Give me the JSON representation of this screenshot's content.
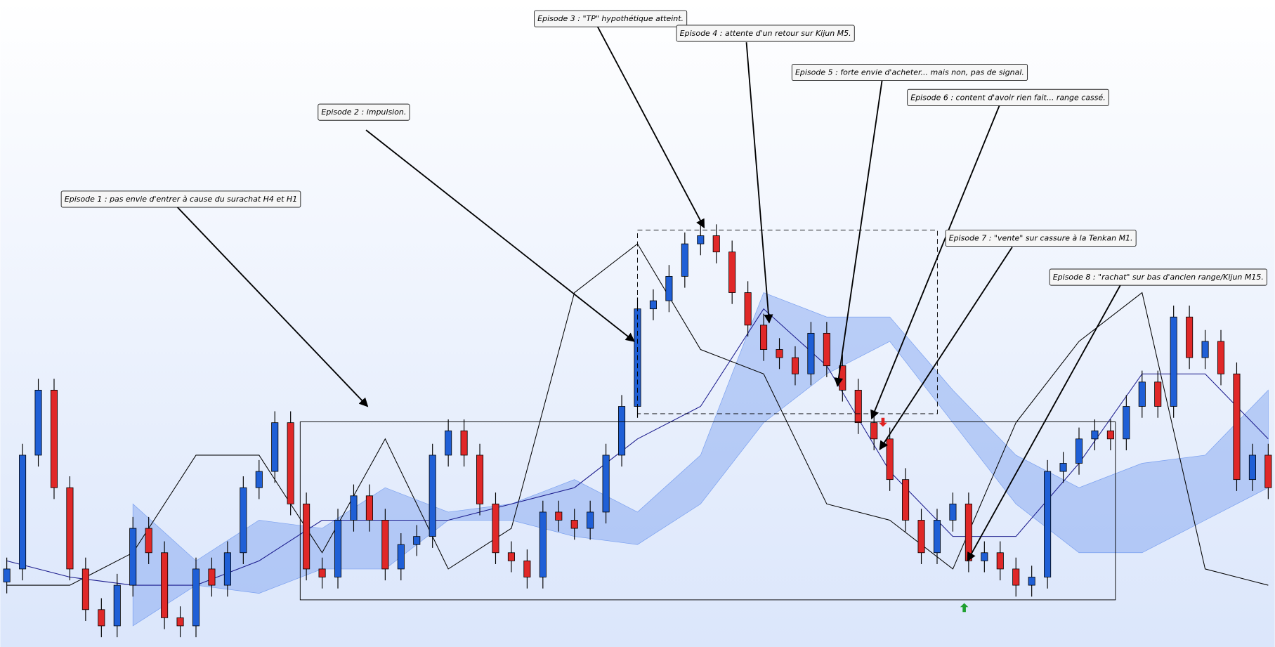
{
  "chart_data": {
    "type": "candlestick",
    "ylim": [
      0,
      796
    ],
    "up_color": "#1f5fd6",
    "down_color": "#e02828",
    "open": [
      80,
      96,
      236,
      316,
      196,
      96,
      46,
      26,
      76,
      146,
      116,
      36,
      26,
      96,
      76,
      116,
      196,
      216,
      276,
      176,
      96,
      86,
      156,
      186,
      156,
      96,
      126,
      136,
      236,
      266,
      236,
      176,
      116,
      106,
      86,
      166,
      156,
      146,
      166,
      236,
      296,
      416,
      426,
      456,
      496,
      506,
      486,
      436,
      396,
      366,
      356,
      336,
      386,
      346,
      316,
      276,
      256,
      206,
      156,
      116,
      156,
      176,
      106,
      116,
      96,
      76,
      86,
      216,
      226,
      256,
      266,
      256,
      296,
      326,
      296,
      406,
      356,
      376,
      336,
      206,
      236
    ],
    "high": [
      110,
      250,
      330,
      330,
      210,
      110,
      60,
      90,
      160,
      160,
      130,
      50,
      110,
      110,
      130,
      210,
      230,
      290,
      290,
      190,
      110,
      170,
      200,
      200,
      170,
      140,
      150,
      250,
      280,
      280,
      250,
      190,
      130,
      120,
      180,
      180,
      170,
      180,
      250,
      310,
      430,
      440,
      470,
      510,
      520,
      520,
      500,
      450,
      410,
      380,
      370,
      400,
      400,
      360,
      330,
      290,
      270,
      220,
      170,
      170,
      190,
      190,
      130,
      130,
      110,
      100,
      230,
      240,
      270,
      280,
      280,
      310,
      340,
      340,
      420,
      420,
      390,
      390,
      350,
      250,
      250
    ],
    "low": [
      66,
      82,
      222,
      182,
      82,
      32,
      12,
      12,
      62,
      102,
      22,
      12,
      12,
      62,
      62,
      102,
      182,
      202,
      162,
      82,
      72,
      72,
      142,
      142,
      82,
      82,
      112,
      122,
      222,
      222,
      162,
      102,
      92,
      72,
      72,
      142,
      132,
      132,
      152,
      222,
      282,
      402,
      412,
      442,
      482,
      472,
      422,
      382,
      352,
      342,
      322,
      322,
      332,
      302,
      262,
      242,
      192,
      142,
      102,
      102,
      142,
      92,
      92,
      82,
      62,
      62,
      72,
      202,
      212,
      242,
      242,
      242,
      282,
      282,
      282,
      342,
      342,
      322,
      192,
      192,
      182
    ],
    "close": [
      96,
      236,
      316,
      196,
      96,
      46,
      26,
      76,
      146,
      116,
      36,
      26,
      96,
      76,
      116,
      196,
      216,
      276,
      176,
      96,
      86,
      156,
      186,
      156,
      96,
      126,
      136,
      236,
      266,
      236,
      176,
      116,
      106,
      86,
      166,
      156,
      146,
      166,
      236,
      296,
      416,
      426,
      456,
      496,
      506,
      486,
      436,
      396,
      366,
      356,
      336,
      386,
      346,
      316,
      276,
      256,
      206,
      156,
      116,
      156,
      176,
      106,
      116,
      96,
      76,
      86,
      216,
      226,
      256,
      266,
      256,
      296,
      326,
      296,
      406,
      356,
      376,
      336,
      206,
      236,
      196
    ],
    "cloud": {
      "color": "#7aa0f0",
      "x": [
        0,
        4,
        8,
        12,
        16,
        20,
        24,
        28,
        32,
        36,
        40,
        44,
        48,
        52,
        56,
        60,
        64,
        68,
        72,
        76,
        80
      ],
      "upper": [
        null,
        null,
        176,
        106,
        156,
        146,
        196,
        166,
        176,
        206,
        166,
        236,
        436,
        406,
        406,
        316,
        236,
        196,
        226,
        236,
        316
      ],
      "lower": [
        null,
        null,
        26,
        76,
        66,
        96,
        96,
        156,
        156,
        136,
        126,
        176,
        276,
        336,
        376,
        276,
        176,
        116,
        116,
        156,
        196
      ]
    },
    "lines": [
      {
        "color": "#000000",
        "x": [
          0,
          4,
          8,
          12,
          16,
          20,
          24,
          28,
          32,
          36,
          40,
          44,
          48,
          52,
          56,
          60,
          64,
          68,
          72,
          76,
          80
        ],
        "values": [
          76,
          76,
          116,
          236,
          236,
          116,
          256,
          96,
          146,
          436,
          496,
          366,
          336,
          176,
          156,
          96,
          276,
          376,
          436,
          96,
          76
        ]
      },
      {
        "color": "#1a1a8c",
        "x": [
          0,
          4,
          8,
          12,
          16,
          20,
          24,
          28,
          32,
          36,
          40,
          44,
          48,
          52,
          56,
          60,
          64,
          68,
          72,
          76,
          80
        ],
        "values": [
          106,
          86,
          76,
          76,
          106,
          156,
          156,
          156,
          176,
          196,
          256,
          296,
          416,
          346,
          216,
          136,
          136,
          226,
          336,
          336,
          256
        ]
      }
    ],
    "annotations": [
      {
        "text": "Episode 1 : pas envie d'entrer à cause du surachat H4 et H1"
      },
      {
        "text": "Episode 2 : impulsion."
      },
      {
        "text": "Episode 3 : \"TP\" hypothétique atteint."
      },
      {
        "text": "Episode 4 : attente d'un retour sur Kijun M5."
      },
      {
        "text": "Episode 5 : forte envie d'acheter... mais non, pas de signal."
      },
      {
        "text": "Episode 6 : content d'avoir rien fait... range cassé."
      },
      {
        "text": "Episode 7 : \"vente\" sur cassure à la Tenkan M1."
      },
      {
        "text": "Episode 8 : \"rachat\" sur bas d'ancien range/Kijun M15."
      }
    ]
  }
}
